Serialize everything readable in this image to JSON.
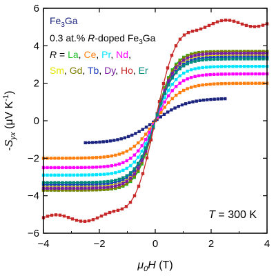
{
  "chart_data": {
    "type": "line",
    "xlabel": "μ0H (T)",
    "ylabel": "-Syx (μV K⁻¹)",
    "xlim": [
      -4,
      4
    ],
    "ylim": [
      -6,
      6
    ],
    "xticks": [
      -4,
      -2,
      0,
      2,
      4
    ],
    "yticks": [
      -6,
      -4,
      -2,
      0,
      2,
      4,
      6
    ],
    "grid": false,
    "legend": {
      "title": "Fe3Ga",
      "line2": "0.3 at.% R-doped Fe3Ga",
      "line3_prefix": "R = ",
      "items": [
        "La",
        "Ce",
        "Pr",
        "Nd",
        "Sm",
        "Gd",
        "Tb",
        "Dy",
        "Ho",
        "Er"
      ],
      "placement": "top-left"
    },
    "annotation": "T = 300 K",
    "series": [
      {
        "name": "Fe3Ga",
        "color": "#1a237e",
        "marker": "square",
        "sat": 1.2,
        "w": 1.1,
        "x": [
          -2.5,
          2.5
        ],
        "n": 40
      },
      {
        "name": "La",
        "color": "#1fbf28",
        "marker": "square",
        "sat": 3.7,
        "w": 0.65,
        "x": [
          -4,
          4
        ],
        "n": 60
      },
      {
        "name": "Ce",
        "color": "#ff7f0e",
        "marker": "square",
        "sat": 2.0,
        "w": 0.9,
        "x": [
          -4,
          4
        ],
        "n": 60
      },
      {
        "name": "Pr",
        "color": "#00e5ff",
        "marker": "square",
        "sat": 2.9,
        "w": 0.75,
        "x": [
          -4,
          4
        ],
        "n": 60
      },
      {
        "name": "Nd",
        "color": "#ff00ff",
        "marker": "square",
        "sat": 2.5,
        "w": 0.8,
        "x": [
          -4,
          4
        ],
        "n": 60
      },
      {
        "name": "Sm",
        "color": "#e6e600",
        "marker": "square",
        "sat": 3.5,
        "w": 0.7,
        "x": [
          -4,
          4
        ],
        "n": 60
      },
      {
        "name": "Gd",
        "color": "#7f7f00",
        "marker": "square",
        "sat": 3.7,
        "w": 0.68,
        "x": [
          -4,
          4
        ],
        "n": 60
      },
      {
        "name": "Tb",
        "color": "#1f3fbf",
        "marker": "square",
        "sat": 3.4,
        "w": 0.72,
        "x": [
          -4,
          4
        ],
        "n": 60
      },
      {
        "name": "Dy",
        "color": "#7b1fa2",
        "marker": "square",
        "sat": 3.6,
        "w": 0.7,
        "x": [
          -4,
          4
        ],
        "n": 60
      },
      {
        "name": "Ho",
        "color": "#c62828",
        "marker": "square",
        "sat": 5.2,
        "w": 0.75,
        "x": [
          -4,
          4
        ],
        "n": 55,
        "wobble": true
      },
      {
        "name": "Er",
        "color": "#00897b",
        "marker": "square",
        "sat": 3.3,
        "w": 0.72,
        "x": [
          -4,
          4
        ],
        "n": 60
      }
    ]
  }
}
